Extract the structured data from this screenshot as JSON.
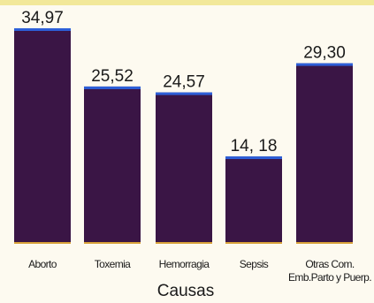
{
  "chart_data": {
    "type": "bar",
    "categories": [
      [
        "Aborto"
      ],
      [
        "Toxemia"
      ],
      [
        "Hemorragia"
      ],
      [
        "Sepsis"
      ],
      [
        "Otras Com.",
        "Emb.Parto y Puerp."
      ]
    ],
    "values": [
      34.97,
      25.52,
      24.57,
      14.18,
      29.3
    ],
    "value_labels": [
      "34,97",
      "25,52",
      "24,57",
      "14, 18",
      "29,30"
    ],
    "xlabel": "Causas",
    "ylabel": "",
    "ylim": [
      0,
      34.97
    ],
    "grid": false,
    "colors": {
      "bar": "#3a1545",
      "cap": "#2d5fd8",
      "foot": "#d8a23a"
    }
  }
}
